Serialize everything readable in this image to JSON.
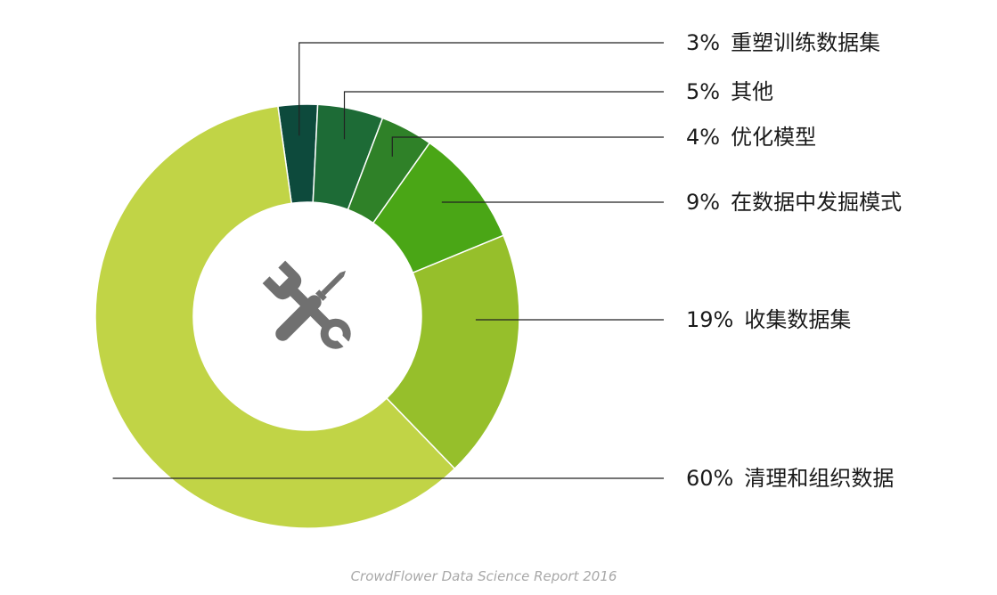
{
  "chart_data": {
    "type": "pie",
    "donut": true,
    "title": "",
    "source": "CrowdFlower Data Science Report 2016",
    "center_icon": "wrench-screwdriver-icon",
    "slices": [
      {
        "value": 3,
        "percent_label": "3%",
        "name": "重塑训练数据集",
        "color": "#0d4a3c"
      },
      {
        "value": 5,
        "percent_label": "5%",
        "name": "其他",
        "color": "#1d6b36"
      },
      {
        "value": 4,
        "percent_label": "4%",
        "name": "优化模型",
        "color": "#2f8128"
      },
      {
        "value": 9,
        "percent_label": "9%",
        "name": "在数据中发掘模式",
        "color": "#4aa616"
      },
      {
        "value": 19,
        "percent_label": "19%",
        "name": "收集数据集",
        "color": "#96bf2b"
      },
      {
        "value": 60,
        "percent_label": "60%",
        "name": "清理和组织数据",
        "color": "#c1d446"
      }
    ]
  }
}
